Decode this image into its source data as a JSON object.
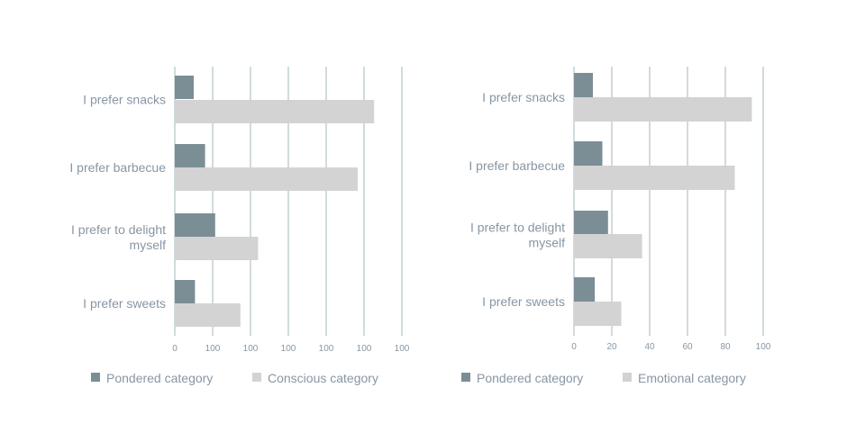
{
  "colors": {
    "pondered": "#7b8e96",
    "secondary": "#d3d3d3",
    "grid": "#a3b7bd",
    "text": "#8796a4"
  },
  "chart_data": [
    {
      "type": "bar",
      "orientation": "horizontal",
      "categories": [
        "I prefer snacks",
        "I prefer barbecue",
        "I prefer to delight myself",
        "I prefer sweets"
      ],
      "series": [
        {
          "name": "Pondered category",
          "values": [
            15,
            24,
            32,
            16
          ]
        },
        {
          "name": "Conscious category",
          "values": [
            158,
            145,
            66,
            52
          ]
        }
      ],
      "ticks": [
        "0",
        "100",
        "100",
        "100",
        "100",
        "100",
        "100"
      ],
      "xlim": [
        0,
        180
      ],
      "grid": true,
      "legend": "bottom"
    },
    {
      "type": "bar",
      "orientation": "horizontal",
      "categories": [
        "I prefer snacks",
        "I prefer barbecue",
        "I prefer to delight myself",
        "I prefer sweets"
      ],
      "series": [
        {
          "name": "Pondered category",
          "values": [
            10,
            15,
            18,
            11
          ]
        },
        {
          "name": "Emotional category",
          "values": [
            94,
            85,
            36,
            25
          ]
        }
      ],
      "ticks": [
        "0",
        "20",
        "40",
        "60",
        "80",
        "100"
      ],
      "xlim": [
        0,
        100
      ],
      "grid": true,
      "legend": "bottom"
    }
  ]
}
